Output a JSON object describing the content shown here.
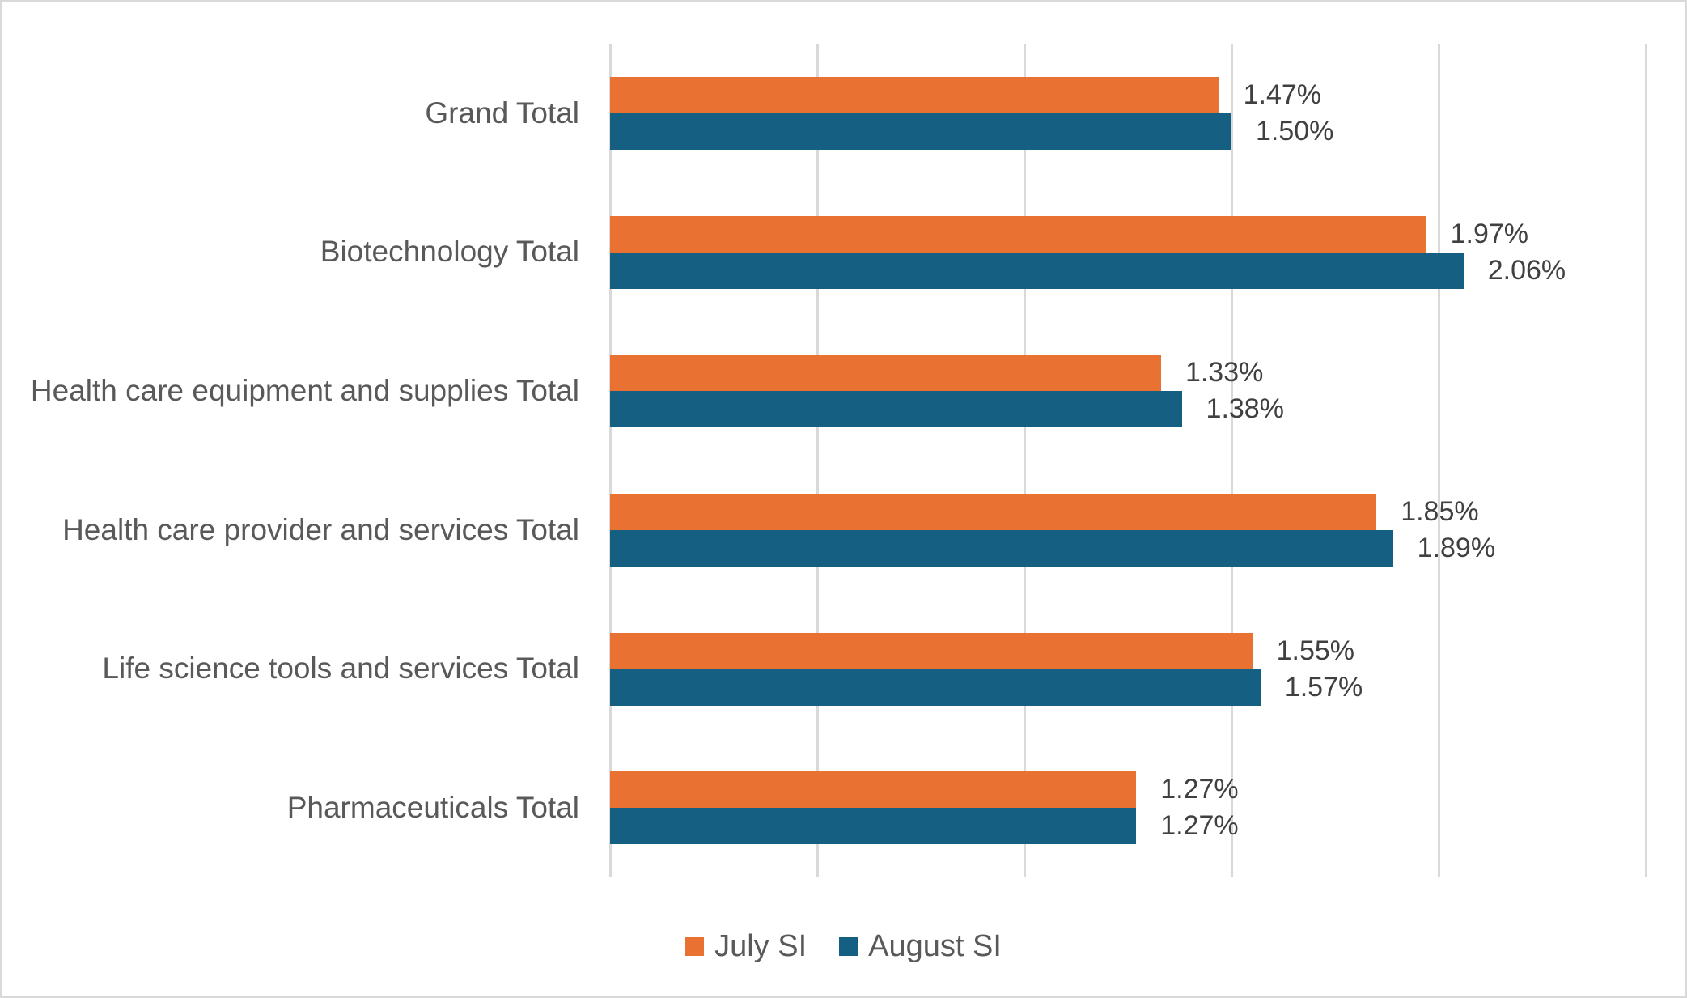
{
  "chart_data": {
    "type": "bar",
    "orientation": "horizontal",
    "title": "",
    "xlabel": "",
    "ylabel": "",
    "categories": [
      "Grand Total",
      "Biotechnology Total",
      "Health care equipment and supplies Total",
      "Health care provider and services Total",
      "Life science tools and services Total",
      "Pharmaceuticals Total"
    ],
    "series": [
      {
        "name": "July SI",
        "color": "#E97132",
        "values": [
          1.47,
          1.97,
          1.33,
          1.85,
          1.55,
          1.27
        ],
        "labels": [
          "1.47%",
          "1.97%",
          "1.33%",
          "1.85%",
          "1.55%",
          "1.27%"
        ]
      },
      {
        "name": "August SI",
        "color": "#156082",
        "values": [
          1.5,
          2.06,
          1.38,
          1.89,
          1.57,
          1.27
        ],
        "labels": [
          "1.50%",
          "2.06%",
          "1.38%",
          "1.89%",
          "1.57%",
          "1.27%"
        ]
      }
    ],
    "xlim": [
      0,
      2.5
    ],
    "grid_step": 0.5,
    "grid": true,
    "legend_position": "bottom",
    "value_labels_shown": true,
    "axis_tick_labels_shown": false
  },
  "styles": {
    "grid_color": "#D9D9D9",
    "category_label_color": "#595959",
    "value_label_color": "#404040",
    "legend_label_color": "#595959",
    "background": "#FFFFFF",
    "frame_border_color": "#D9D9D9"
  }
}
